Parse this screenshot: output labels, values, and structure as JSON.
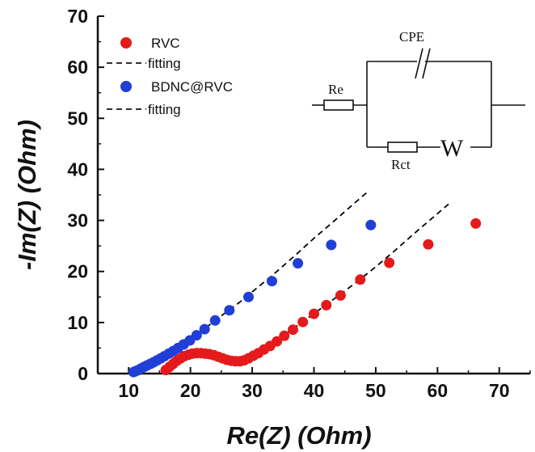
{
  "chart_data": {
    "type": "scatter",
    "xlabel": "Re(Z) (Ohm)",
    "ylabel": "-Im(Z) (Ohm)",
    "xlim": [
      5,
      75
    ],
    "ylim": [
      0,
      70
    ],
    "xticks": [
      "10",
      "20",
      "30",
      "40",
      "50",
      "60",
      "70"
    ],
    "yticks": [
      "0",
      "10",
      "20",
      "30",
      "40",
      "50",
      "60",
      "70"
    ],
    "legend_position": "top-left",
    "series": [
      {
        "name": "RVC",
        "kind": "points",
        "color": "#e41a1c",
        "x": [
          16.0,
          16.6,
          17.2,
          17.8,
          18.4,
          19.0,
          19.7,
          20.3,
          21.0,
          21.7,
          22.4,
          23.1,
          23.8,
          24.5,
          25.2,
          25.9,
          26.6,
          27.3,
          28.0,
          28.7,
          29.4,
          30.2,
          31.0,
          31.9,
          32.9,
          34.0,
          35.2,
          36.6,
          38.2,
          40.0,
          42.0,
          44.3,
          47.5,
          52.2,
          58.5,
          66.2
        ],
        "y": [
          0.7,
          1.3,
          1.9,
          2.5,
          3.0,
          3.4,
          3.7,
          3.9,
          4.0,
          4.0,
          3.9,
          3.8,
          3.6,
          3.3,
          3.0,
          2.7,
          2.5,
          2.4,
          2.4,
          2.6,
          3.0,
          3.5,
          4.0,
          4.7,
          5.4,
          6.3,
          7.4,
          8.6,
          10.1,
          11.7,
          13.4,
          15.3,
          18.4,
          21.7,
          25.3,
          29.4
        ]
      },
      {
        "name": "fitting",
        "kind": "line",
        "color": "#000000",
        "x": [
          15.5,
          17,
          19,
          21,
          23,
          25,
          27,
          28.5,
          30,
          32,
          35,
          38,
          41,
          44,
          47,
          50,
          53,
          56,
          59,
          62
        ],
        "y": [
          0.3,
          1.8,
          3.2,
          3.9,
          3.9,
          3.3,
          2.7,
          2.6,
          3.3,
          4.8,
          7.4,
          10.0,
          12.6,
          15.3,
          18.0,
          20.9,
          24.0,
          27.2,
          30.3,
          33.4
        ]
      },
      {
        "name": "BDNC@RVC",
        "kind": "points",
        "color": "#1f3fd6",
        "x": [
          10.8,
          11.2,
          11.6,
          12.0,
          12.5,
          13.0,
          13.5,
          14.0,
          14.6,
          15.2,
          15.8,
          16.5,
          17.2,
          18.0,
          18.9,
          19.9,
          21.0,
          22.3,
          24.0,
          26.3,
          29.4,
          33.2,
          37.4,
          42.8,
          49.2
        ],
        "y": [
          0.3,
          0.5,
          0.7,
          1.0,
          1.3,
          1.6,
          1.9,
          2.2,
          2.6,
          3.0,
          3.4,
          3.9,
          4.4,
          5.0,
          5.7,
          6.5,
          7.5,
          8.7,
          10.4,
          12.4,
          15.0,
          18.1,
          21.6,
          25.2,
          29.1
        ]
      },
      {
        "name": "fitting",
        "kind": "line",
        "color": "#000000",
        "x": [
          10.5,
          12,
          14,
          16,
          18,
          20,
          22,
          25,
          28,
          31,
          34,
          37,
          40,
          43,
          46,
          48.5
        ],
        "y": [
          0.2,
          0.9,
          2.1,
          3.5,
          5.0,
          6.7,
          8.5,
          11.3,
          14.0,
          17.0,
          20.0,
          23.2,
          26.5,
          29.6,
          32.8,
          35.4
        ]
      }
    ],
    "inset_circuit": {
      "labels": {
        "re": "Re",
        "cpe": "CPE",
        "rct": "Rct",
        "w": "W"
      }
    }
  }
}
